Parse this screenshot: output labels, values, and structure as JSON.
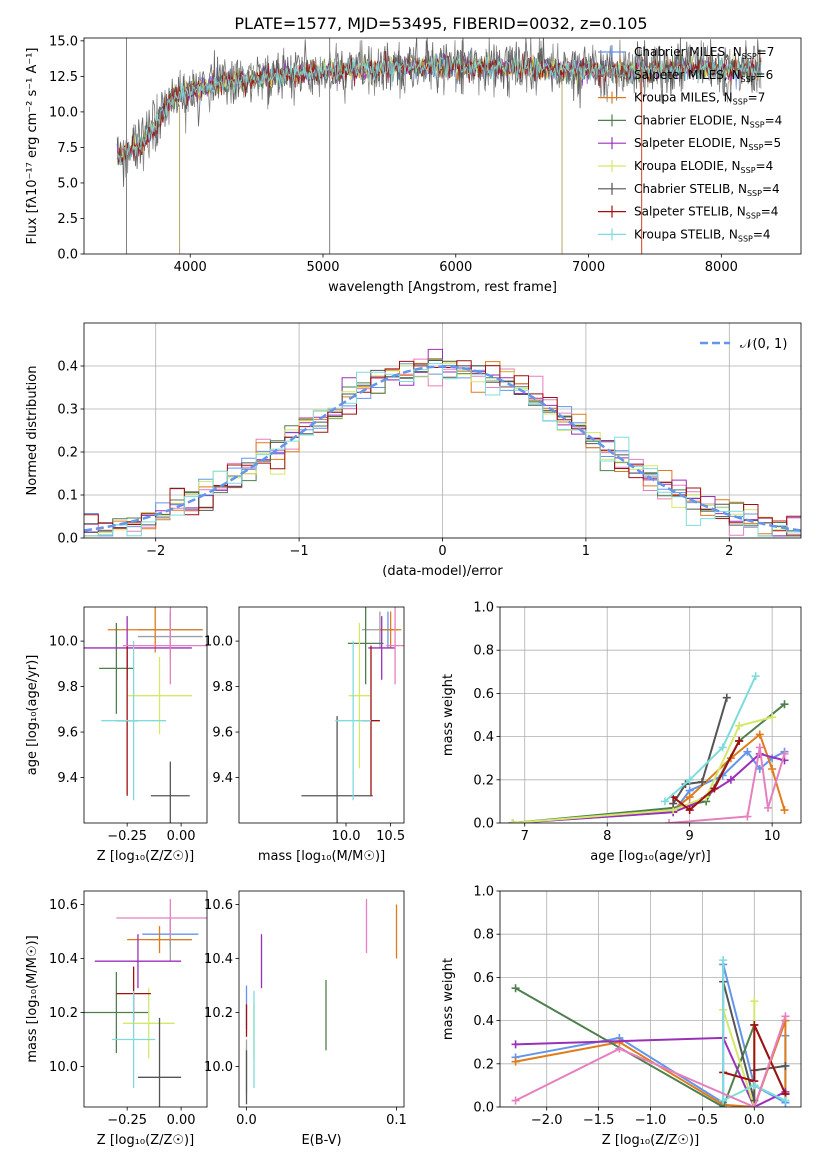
{
  "title": "PLATE=1577, MJD=53495, FIBERID=0032, z=0.105",
  "series_colors": [
    "#6495ed",
    "#a0a0a0",
    "#e07b1a",
    "#4f7f4f",
    "#9b30b8",
    "#d4e86a",
    "#555555",
    "#a01010",
    "#7fdcdc",
    "#e67fbf"
  ],
  "chart_data": [
    {
      "type": "line",
      "panel": "spectrum",
      "title": "PLATE=1577, MJD=53495, FIBERID=0032, z=0.105",
      "xlabel": "wavelength [Angstrom, rest frame]",
      "ylabel": "Flux [fλ10⁻¹⁷ erg cm⁻² s⁻¹ A⁻¹]",
      "xlim": [
        3200,
        8600
      ],
      "ylim": [
        0,
        15.2
      ],
      "xticks": [
        "4000",
        "5000",
        "6000",
        "7000",
        "8000"
      ],
      "yticks": [
        "0.0",
        "2.5",
        "5.0",
        "7.5",
        "10.0",
        "12.5",
        "15.0"
      ],
      "legend_location": "right",
      "legend": [
        {
          "label": "Chabrier MILES, N",
          "sub": "SSP",
          "suffix": "=7",
          "color": "#6495ed"
        },
        {
          "label": "Salpeter MILES, N",
          "sub": "SSP",
          "suffix": "=6",
          "color": "#808080"
        },
        {
          "label": "Kroupa MILES, N",
          "sub": "SSP",
          "suffix": "=7",
          "color": "#e07b1a"
        },
        {
          "label": "Chabrier ELODIE, N",
          "sub": "SSP",
          "suffix": "=4",
          "color": "#4f7f4f"
        },
        {
          "label": "Salpeter ELODIE, N",
          "sub": "SSP",
          "suffix": "=5",
          "color": "#9b30b8"
        },
        {
          "label": "Kroupa ELODIE, N",
          "sub": "SSP",
          "suffix": "=4",
          "color": "#d4e86a"
        },
        {
          "label": "Chabrier STELIB, N",
          "sub": "SSP",
          "suffix": "=4",
          "color": "#555555"
        },
        {
          "label": "Salpeter STELIB, N",
          "sub": "SSP",
          "suffix": "=4",
          "color": "#a01010"
        },
        {
          "label": "Kroupa STELIB, N",
          "sub": "SSP",
          "suffix": "=4",
          "color": "#7fdcdc"
        }
      ],
      "continuum": {
        "x": [
          3450,
          3550,
          3650,
          3750,
          3850,
          4000,
          4150,
          4300,
          4500,
          4700,
          4900,
          5100,
          5300,
          5500,
          5700,
          5900,
          6100,
          6300,
          6500,
          6700,
          6900,
          7100,
          7300,
          7500,
          7700,
          7900,
          8100,
          8300
        ],
        "y": [
          6.8,
          7.4,
          7.9,
          9.2,
          10.8,
          11.5,
          11.9,
          12.1,
          12.3,
          12.5,
          12.7,
          12.9,
          13.0,
          13.1,
          13.2,
          13.2,
          13.2,
          13.1,
          13.1,
          13.0,
          13.0,
          12.9,
          12.8,
          12.9,
          13.1,
          13.1,
          13.0,
          13.0
        ]
      },
      "spikes": [
        {
          "x": 3520,
          "y0": 0,
          "y1": 15.2,
          "color": "#808080"
        },
        {
          "x": 3920,
          "y0": 0,
          "y1": 10.5,
          "color": "#b7a36a"
        },
        {
          "x": 5050,
          "y0": 0,
          "y1": 15.2,
          "color": "#808080"
        },
        {
          "x": 6800,
          "y0": 0,
          "y1": 12.6,
          "color": "#b7a36a"
        },
        {
          "x": 7400,
          "y0": 0,
          "y1": 13.0,
          "color": "#d04020"
        }
      ]
    },
    {
      "type": "histogram",
      "panel": "residuals",
      "xlabel": "(data-model)/error",
      "ylabel": "Normed distribution",
      "xlim": [
        -2.5,
        2.5
      ],
      "ylim": [
        0,
        0.5
      ],
      "xticks": [
        "-2",
        "-1",
        "0",
        "1",
        "2"
      ],
      "yticks": [
        "0.0",
        "0.1",
        "0.2",
        "0.3",
        "0.4"
      ],
      "grid": true,
      "legend_location": "top-right",
      "legend": [
        {
          "label": "𝒩(0, 1)",
          "color": "#6495ed",
          "style": "dashed"
        }
      ],
      "bin_width": 0.1,
      "n_series": 9
    },
    {
      "type": "errorbar",
      "panel": "age-vs-Z",
      "xlabel": "Z [log₁₀(Z/Z☉)]",
      "ylabel": "age  [log₁₀(age/yr)]",
      "xlim": [
        -0.45,
        0.12
      ],
      "ylim": [
        9.2,
        10.15
      ],
      "xticks": [
        "-0.25",
        "0.00"
      ],
      "yticks": [
        "9.4",
        "9.6",
        "9.8",
        "10.0"
      ],
      "points": [
        {
          "x": -0.05,
          "xerr": 0.15,
          "y": 10.05,
          "yerr": 0.08,
          "color": "#6495ed"
        },
        {
          "x": -0.05,
          "xerr": 0.15,
          "y": 10.02,
          "yerr": 0.1,
          "color": "#a0a0a0"
        },
        {
          "x": -0.12,
          "xerr": 0.22,
          "y": 10.05,
          "yerr": 0.1,
          "color": "#e07b1a"
        },
        {
          "x": -0.3,
          "xerr": 0.08,
          "y": 9.88,
          "yerr": 0.2,
          "color": "#4f7f4f"
        },
        {
          "x": -0.25,
          "xerr": 0.3,
          "y": 9.97,
          "yerr": 0.14,
          "color": "#9b30b8"
        },
        {
          "x": -0.1,
          "xerr": 0.15,
          "y": 9.76,
          "yerr": 0.17,
          "color": "#d4e86a"
        },
        {
          "x": -0.05,
          "xerr": 0.09,
          "y": 9.32,
          "yerr": 0.15,
          "color": "#555555"
        },
        {
          "x": -0.25,
          "xerr": 0.05,
          "y": 9.65,
          "yerr": 0.33,
          "color": "#a01010"
        },
        {
          "x": -0.22,
          "xerr": 0.15,
          "y": 9.65,
          "yerr": 0.35,
          "color": "#7fdcdc"
        },
        {
          "x": -0.05,
          "xerr": 0.22,
          "y": 9.98,
          "yerr": 0.17,
          "color": "#e67fbf"
        }
      ]
    },
    {
      "type": "errorbar",
      "panel": "age-vs-mass",
      "xlabel": "mass [log₁₀(M/M☉)]",
      "ylabel": "",
      "xlim": [
        8.8,
        10.65
      ],
      "ylim": [
        9.2,
        10.15
      ],
      "xticks": [
        "10.0",
        "10.5"
      ],
      "yticks": [
        "9.4",
        "9.6",
        "9.8",
        "10.0"
      ],
      "points": [
        {
          "x": 10.47,
          "xerr": 0.08,
          "y": 10.05,
          "yerr": 0.08,
          "color": "#6495ed"
        },
        {
          "x": 10.38,
          "xerr": 0.2,
          "y": 10.05,
          "yerr": 0.08,
          "color": "#a0a0a0"
        },
        {
          "x": 10.5,
          "xerr": 0.12,
          "y": 10.05,
          "yerr": 0.08,
          "color": "#e07b1a"
        },
        {
          "x": 10.22,
          "xerr": 0.2,
          "y": 9.99,
          "yerr": 0.18,
          "color": "#4f7f4f"
        },
        {
          "x": 10.4,
          "xerr": 0.15,
          "y": 9.97,
          "yerr": 0.14,
          "color": "#9b30b8"
        },
        {
          "x": 10.15,
          "xerr": 0.12,
          "y": 9.76,
          "yerr": 0.32,
          "color": "#d4e86a"
        },
        {
          "x": 9.9,
          "xerr": 0.4,
          "y": 9.32,
          "yerr": 0.35,
          "color": "#555555"
        },
        {
          "x": 10.28,
          "xerr": 0.1,
          "y": 9.65,
          "yerr": 0.33,
          "color": "#a01010"
        },
        {
          "x": 10.08,
          "xerr": 0.2,
          "y": 9.65,
          "yerr": 0.35,
          "color": "#7fdcdc"
        },
        {
          "x": 10.55,
          "xerr": 0.1,
          "y": 9.98,
          "yerr": 0.17,
          "color": "#e67fbf"
        }
      ]
    },
    {
      "type": "line",
      "panel": "weight-vs-age",
      "xlabel": "age  [log₁₀(age/yr)]",
      "ylabel": "mass weight",
      "xlim": [
        6.7,
        10.35
      ],
      "ylim": [
        0,
        1.0
      ],
      "xticks": [
        "7",
        "8",
        "9",
        "10"
      ],
      "yticks": [
        "0.0",
        "0.2",
        "0.4",
        "0.6",
        "0.8",
        "1.0"
      ],
      "grid": true,
      "series": [
        {
          "color": "#6495ed",
          "x": [
            6.85,
            8.8,
            9.0,
            9.4,
            9.7,
            9.85,
            10.0,
            10.15
          ],
          "y": [
            0.0,
            0.05,
            0.15,
            0.22,
            0.33,
            0.25,
            0.3,
            0.33
          ]
        },
        {
          "color": "#e07b1a",
          "x": [
            6.85,
            8.8,
            9.0,
            9.5,
            9.85,
            10.0,
            10.15
          ],
          "y": [
            0.0,
            0.06,
            0.12,
            0.3,
            0.41,
            0.25,
            0.06
          ]
        },
        {
          "color": "#4f7f4f",
          "x": [
            6.85,
            8.8,
            9.2,
            9.6,
            10.15
          ],
          "y": [
            0.0,
            0.07,
            0.1,
            0.38,
            0.55
          ]
        },
        {
          "color": "#9b30b8",
          "x": [
            6.85,
            8.8,
            9.0,
            9.5,
            9.85,
            10.15
          ],
          "y": [
            0.0,
            0.05,
            0.08,
            0.2,
            0.32,
            0.29
          ]
        },
        {
          "color": "#d4e86a",
          "x": [
            6.85,
            8.8,
            9.2,
            9.6,
            10.0
          ],
          "y": [
            0.0,
            0.06,
            0.12,
            0.45,
            0.49
          ]
        },
        {
          "color": "#555555",
          "x": [
            8.8,
            8.95,
            9.15,
            9.45
          ],
          "y": [
            0.09,
            0.18,
            0.19,
            0.58
          ]
        },
        {
          "color": "#a01010",
          "x": [
            8.8,
            9.0,
            9.3,
            9.6
          ],
          "y": [
            0.12,
            0.06,
            0.16,
            0.38
          ]
        },
        {
          "color": "#7fdcdc",
          "x": [
            8.7,
            9.0,
            9.4,
            9.8
          ],
          "y": [
            0.1,
            0.2,
            0.35,
            0.68
          ]
        },
        {
          "color": "#e67fbf",
          "x": [
            8.75,
            9.7,
            9.85,
            9.95,
            10.15
          ],
          "y": [
            0.0,
            0.03,
            0.35,
            0.07,
            0.32
          ]
        }
      ]
    },
    {
      "type": "errorbar",
      "panel": "mass-vs-Z",
      "xlabel": "Z [log₁₀(Z/Z☉)]",
      "ylabel": "mass [log₁₀(M/M☉)]",
      "xlim": [
        -0.45,
        0.12
      ],
      "ylim": [
        9.85,
        10.65
      ],
      "xticks": [
        "-0.25",
        "0.00"
      ],
      "yticks": [
        "10.0",
        "10.2",
        "10.4",
        "10.6"
      ],
      "points": [
        {
          "x": -0.05,
          "xerr": 0.13,
          "y": 10.49,
          "yerr": 0.05,
          "color": "#6495ed"
        },
        {
          "x": -0.05,
          "xerr": 0.1,
          "y": 10.47,
          "yerr": 0.08,
          "color": "#a0a0a0"
        },
        {
          "x": -0.1,
          "xerr": 0.15,
          "y": 10.47,
          "yerr": 0.05,
          "color": "#e07b1a"
        },
        {
          "x": -0.3,
          "xerr": 0.15,
          "y": 10.2,
          "yerr": 0.15,
          "color": "#4f7f4f"
        },
        {
          "x": -0.2,
          "xerr": 0.2,
          "y": 10.39,
          "yerr": 0.1,
          "color": "#9b30b8"
        },
        {
          "x": -0.15,
          "xerr": 0.12,
          "y": 10.16,
          "yerr": 0.13,
          "color": "#d4e86a"
        },
        {
          "x": -0.1,
          "xerr": 0.1,
          "y": 9.96,
          "yerr": 0.22,
          "color": "#555555"
        },
        {
          "x": -0.22,
          "xerr": 0.08,
          "y": 10.27,
          "yerr": 0.1,
          "color": "#a01010"
        },
        {
          "x": -0.22,
          "xerr": 0.1,
          "y": 10.1,
          "yerr": 0.18,
          "color": "#7fdcdc"
        },
        {
          "x": -0.05,
          "xerr": 0.25,
          "y": 10.55,
          "yerr": 0.07,
          "color": "#e67fbf"
        }
      ]
    },
    {
      "type": "errorbar",
      "panel": "mass-vs-EBV",
      "xlabel": "E(B-V)",
      "ylabel": "",
      "xlim": [
        -0.005,
        0.105
      ],
      "ylim": [
        9.85,
        10.65
      ],
      "xticks": [
        "0.0",
        "0.1"
      ],
      "yticks": [
        "10.0",
        "10.2",
        "10.4",
        "10.6"
      ],
      "points": [
        {
          "x": 0.0,
          "y": 10.22,
          "yerr": 0.08,
          "color": "#6495ed"
        },
        {
          "x": 0.0,
          "y": 10.0,
          "yerr": 0.1,
          "color": "#a0a0a0"
        },
        {
          "x": 0.1,
          "y": 10.5,
          "yerr": 0.1,
          "color": "#e07b1a"
        },
        {
          "x": 0.053,
          "y": 10.19,
          "yerr": 0.13,
          "color": "#4f7f4f"
        },
        {
          "x": 0.01,
          "y": 10.39,
          "yerr": 0.1,
          "color": "#9b30b8"
        },
        {
          "x": 0.005,
          "y": 10.13,
          "yerr": 0.1,
          "color": "#d4e86a"
        },
        {
          "x": 0.0,
          "y": 9.96,
          "yerr": 0.1,
          "color": "#555555"
        },
        {
          "x": 0.0,
          "y": 10.17,
          "yerr": 0.06,
          "color": "#a01010"
        },
        {
          "x": 0.005,
          "y": 10.1,
          "yerr": 0.18,
          "color": "#7fdcdc"
        },
        {
          "x": 0.08,
          "y": 10.52,
          "yerr": 0.1,
          "color": "#e67fbf"
        }
      ]
    },
    {
      "type": "line",
      "panel": "weight-vs-Z",
      "xlabel": "Z [log₁₀(Z/Z☉)]",
      "ylabel": "mass weight",
      "xlim": [
        -2.45,
        0.45
      ],
      "ylim": [
        0,
        1.0
      ],
      "xticks": [
        "-2.0",
        "-1.5",
        "-1.0",
        "-0.5",
        "0.0"
      ],
      "yticks": [
        "0.0",
        "0.2",
        "0.4",
        "0.6",
        "0.8",
        "1.0"
      ],
      "grid": true,
      "series": [
        {
          "color": "#6495ed",
          "x": [
            -2.3,
            -1.3,
            -0.3,
            -0.3,
            0.0,
            0.3,
            0.3
          ],
          "y": [
            0.23,
            0.32,
            0.02,
            0.66,
            0.1,
            0.02,
            0.33
          ]
        },
        {
          "color": "#e07b1a",
          "x": [
            -2.3,
            -1.3,
            -0.3,
            0.0,
            0.3,
            0.3
          ],
          "y": [
            0.21,
            0.3,
            0.01,
            0.0,
            0.4,
            0.06
          ]
        },
        {
          "color": "#4f7f4f",
          "x": [
            -2.3,
            -0.3,
            0.0,
            0.3
          ],
          "y": [
            0.55,
            0.0,
            0.38,
            0.06
          ]
        },
        {
          "color": "#9b30b8",
          "x": [
            -2.3,
            -0.3,
            0.0,
            0.3
          ],
          "y": [
            0.29,
            0.32,
            0.0,
            0.07
          ]
        },
        {
          "color": "#d4e86a",
          "x": [
            -0.3,
            0.0,
            0.0
          ],
          "y": [
            0.45,
            0.0,
            0.49
          ]
        },
        {
          "color": "#555555",
          "x": [
            -0.3,
            0.0,
            0.0,
            0.3
          ],
          "y": [
            0.58,
            0.03,
            0.17,
            0.19
          ]
        },
        {
          "color": "#a01010",
          "x": [
            -0.3,
            0.0,
            0.0,
            0.3
          ],
          "y": [
            0.16,
            0.12,
            0.38,
            0.06
          ]
        },
        {
          "color": "#7fdcdc",
          "x": [
            -0.3,
            -0.3,
            0.0,
            0.3
          ],
          "y": [
            0.68,
            0.03,
            0.1,
            0.03
          ]
        },
        {
          "color": "#e67fbf",
          "x": [
            -2.3,
            -1.3,
            0.0,
            0.3
          ],
          "y": [
            0.03,
            0.27,
            0.0,
            0.42
          ]
        }
      ]
    }
  ]
}
